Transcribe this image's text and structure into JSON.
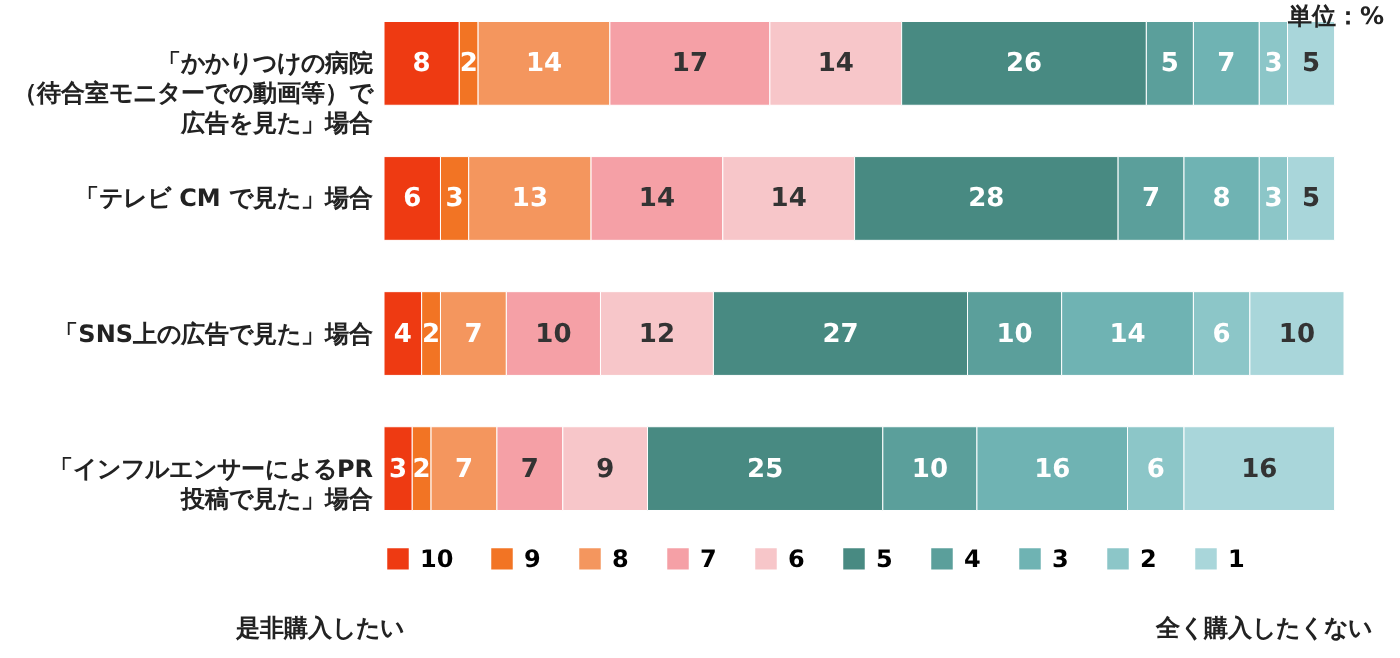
{
  "chart_data": {
    "type": "bar",
    "orientation": "horizontal",
    "stacked": true,
    "data_labels": true,
    "legend": "bottom",
    "categories": [
      "「かかりつけの病院（待合室モニターでの動画等）で広告を見た」場合",
      "「テレビ CM で見た」場合",
      "「SNS上の広告で見た」場合",
      "「インフルエンサーによるPR 投稿で見た」場合"
    ],
    "series": [
      {
        "name": "10",
        "color": "#ee3a12",
        "values": [
          8,
          6,
          4,
          3
        ]
      },
      {
        "name": "9",
        "color": "#f27424",
        "values": [
          2,
          3,
          2,
          2
        ]
      },
      {
        "name": "8",
        "color": "#f4965e",
        "values": [
          14,
          13,
          7,
          7
        ]
      },
      {
        "name": "7",
        "color": "#f5a0a6",
        "values": [
          17,
          14,
          10,
          7
        ]
      },
      {
        "name": "6",
        "color": "#f7c6c9",
        "values": [
          14,
          14,
          12,
          9
        ]
      },
      {
        "name": "5",
        "color": "#488a82",
        "values": [
          26,
          28,
          27,
          25
        ]
      },
      {
        "name": "4",
        "color": "#5b9f9b",
        "values": [
          5,
          7,
          10,
          10
        ]
      },
      {
        "name": "3",
        "color": "#6fb3b3",
        "values": [
          7,
          8,
          14,
          16
        ]
      },
      {
        "name": "2",
        "color": "#8cc6c8",
        "values": [
          3,
          3,
          6,
          6
        ]
      },
      {
        "name": "1",
        "color": "#a9d6da",
        "values": [
          5,
          5,
          10,
          16
        ]
      }
    ],
    "annotations": [
      "単位：%",
      "是非購入したい",
      "全く購入したくない"
    ]
  }
}
